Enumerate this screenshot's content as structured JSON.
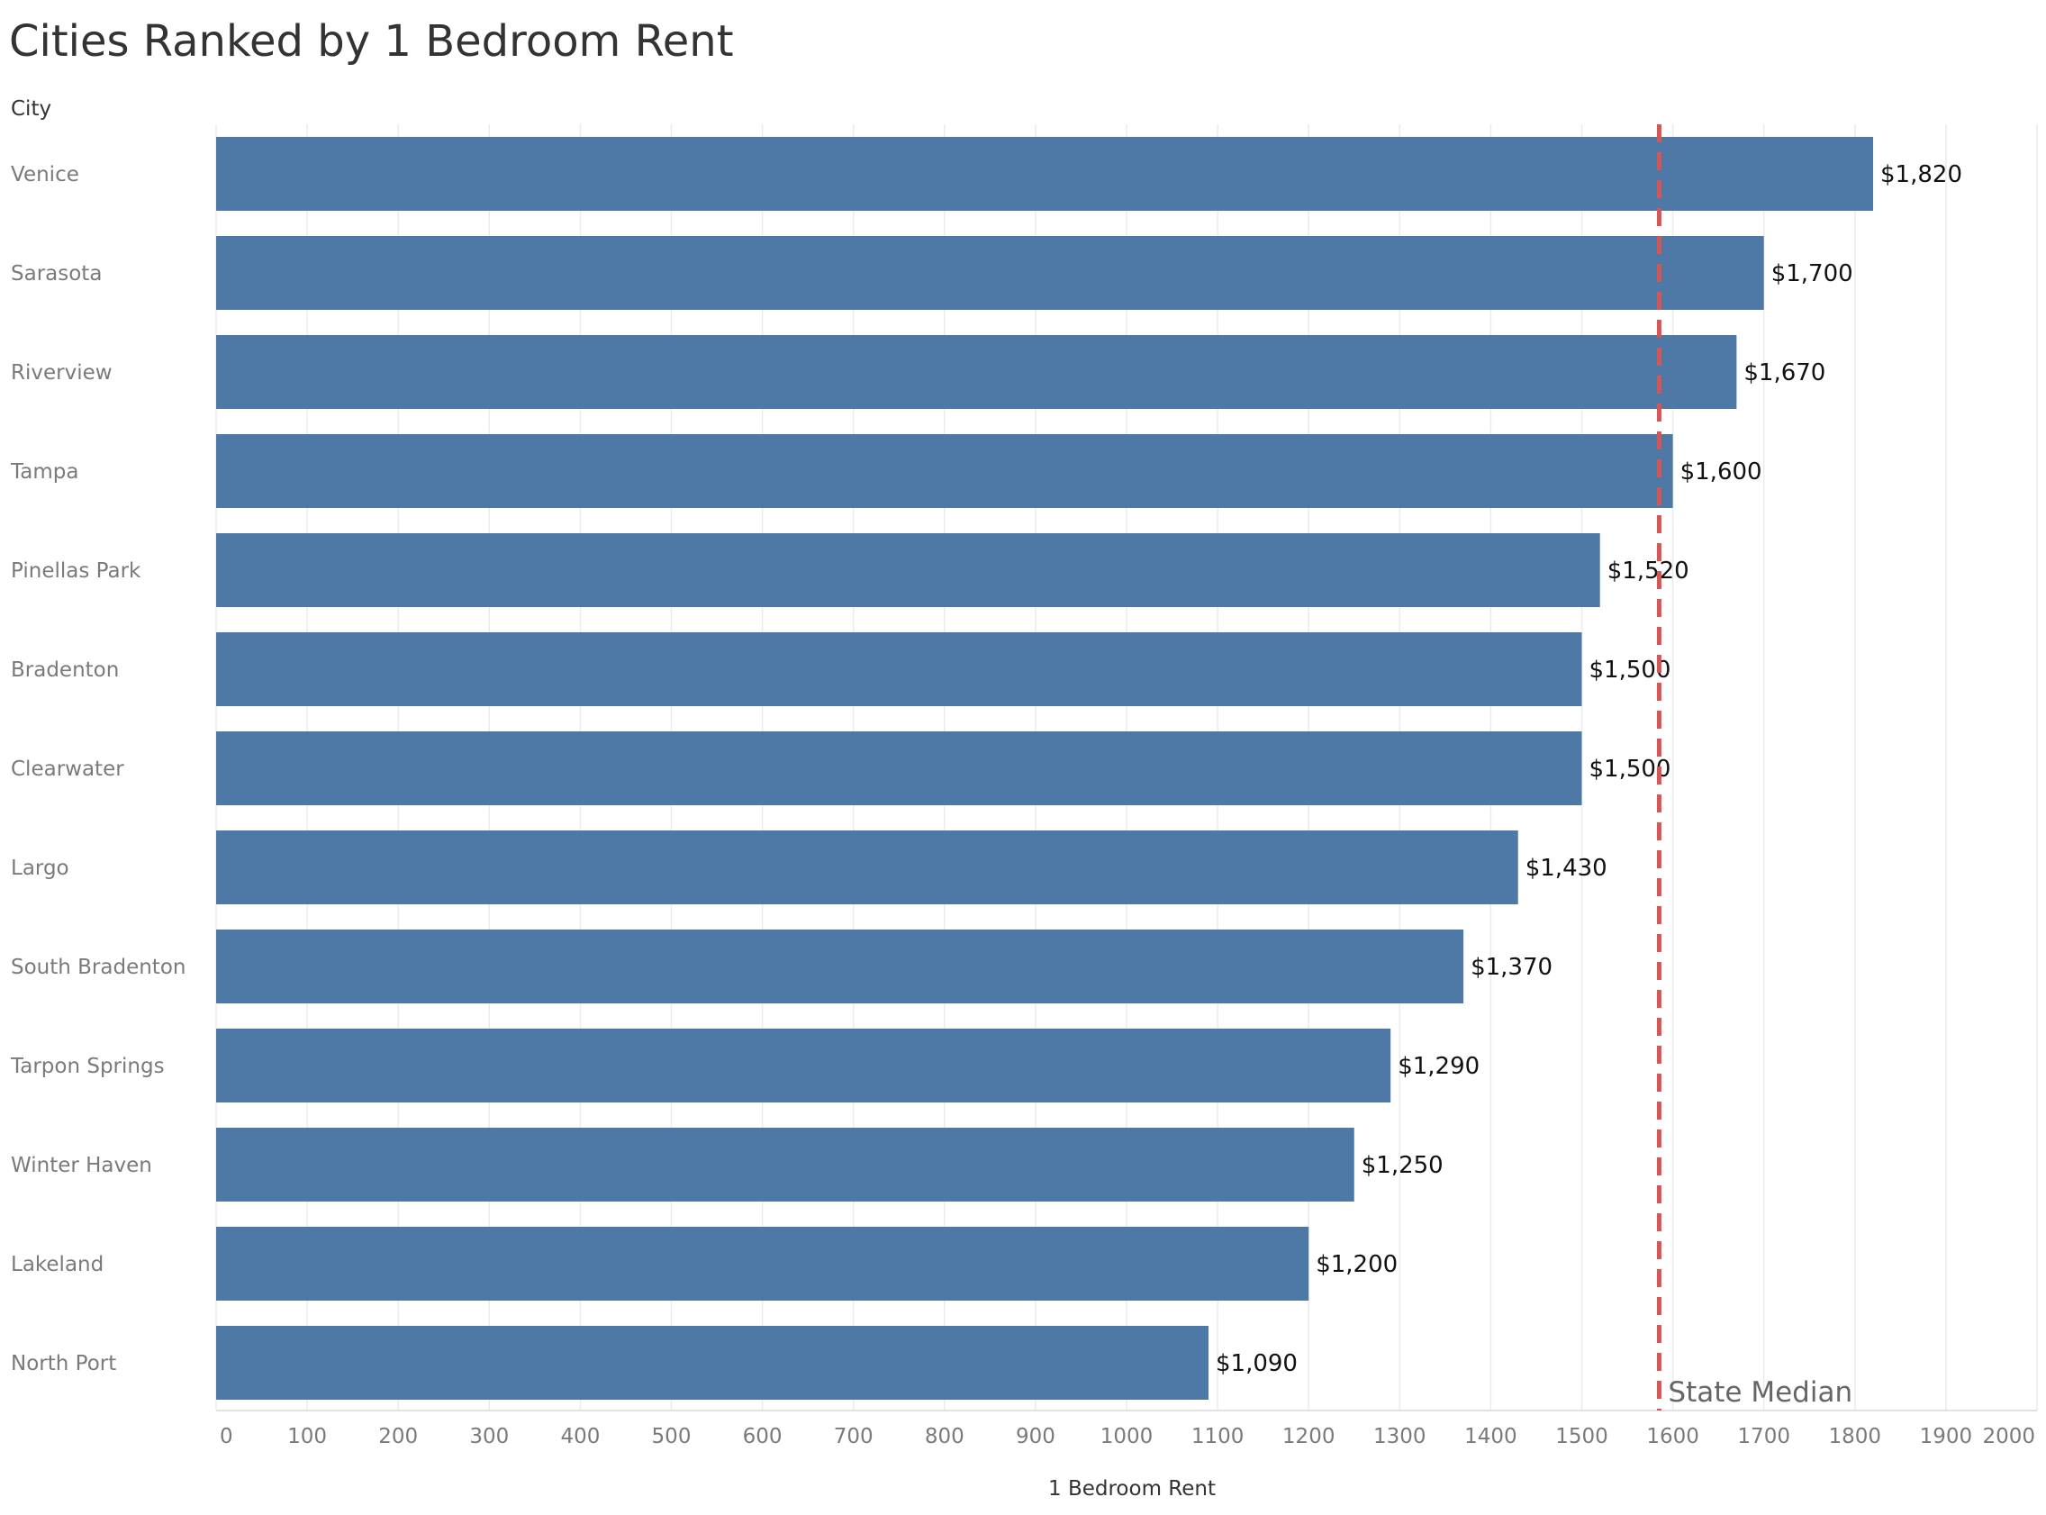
{
  "chart_data": {
    "type": "bar",
    "orientation": "horizontal",
    "title": "Cities Ranked by 1 Bedroom Rent",
    "row_header": "City",
    "xlabel": "1 Bedroom Rent",
    "ylabel": "",
    "categories": [
      "Venice",
      "Sarasota",
      "Riverview",
      "Tampa",
      "Pinellas Park",
      "Bradenton",
      "Clearwater",
      "Largo",
      "South Bradenton",
      "Tarpon Springs",
      "Winter Haven",
      "Lakeland",
      "North Port"
    ],
    "values": [
      1820,
      1700,
      1670,
      1600,
      1520,
      1500,
      1500,
      1430,
      1370,
      1290,
      1250,
      1200,
      1090
    ],
    "data_labels": [
      "$1,820",
      "$1,700",
      "$1,670",
      "$1,600",
      "$1,520",
      "$1,500",
      "$1,500",
      "$1,430",
      "$1,370",
      "$1,290",
      "$1,250",
      "$1,200",
      "$1,090"
    ],
    "xlim": [
      0,
      2000
    ],
    "x_ticks": [
      0,
      100,
      200,
      300,
      400,
      500,
      600,
      700,
      800,
      900,
      1000,
      1100,
      1200,
      1300,
      1400,
      1500,
      1600,
      1700,
      1800,
      1900,
      2000
    ],
    "reference_line": {
      "value": 1585,
      "label": "State Median",
      "color": "#d65555",
      "style": "dashed"
    },
    "bar_color": "#4e79a7",
    "grid": true,
    "legend": "none"
  }
}
